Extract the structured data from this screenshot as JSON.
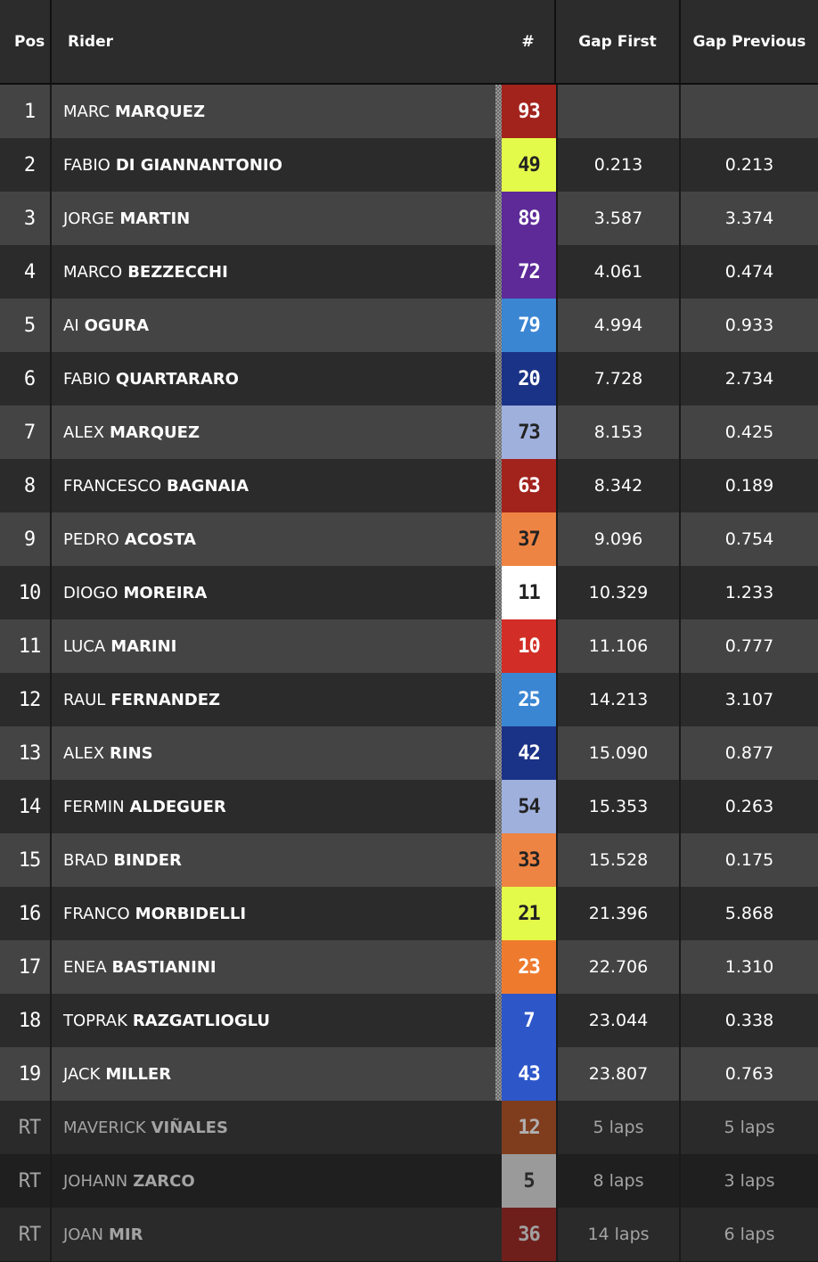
{
  "header": {
    "pos": "Pos",
    "rider": "Rider",
    "num": "#",
    "gap_first": "Gap First",
    "gap_previous": "Gap Previous"
  },
  "rows": [
    {
      "pos": "1",
      "first": "MARC",
      "last": "MARQUEZ",
      "num": "93",
      "bg": "#a2231c",
      "fg": "#ffffff",
      "gap_first": "",
      "gap_previous": ""
    },
    {
      "pos": "2",
      "first": "FABIO",
      "last": "DI GIANNANTONIO",
      "num": "49",
      "bg": "#e4fa4a",
      "fg": "#222222",
      "gap_first": "0.213",
      "gap_previous": "0.213"
    },
    {
      "pos": "3",
      "first": "JORGE",
      "last": "MARTIN",
      "num": "89",
      "bg": "#5d2a98",
      "fg": "#ffffff",
      "gap_first": "3.587",
      "gap_previous": "3.374"
    },
    {
      "pos": "4",
      "first": "MARCO",
      "last": "BEZZECCHI",
      "num": "72",
      "bg": "#5d2a98",
      "fg": "#ffffff",
      "gap_first": "4.061",
      "gap_previous": "0.474"
    },
    {
      "pos": "5",
      "first": "AI",
      "last": "OGURA",
      "num": "79",
      "bg": "#3b86d3",
      "fg": "#ffffff",
      "gap_first": "4.994",
      "gap_previous": "0.933"
    },
    {
      "pos": "6",
      "first": "FABIO",
      "last": "QUARTARARO",
      "num": "20",
      "bg": "#1b3386",
      "fg": "#ffffff",
      "gap_first": "7.728",
      "gap_previous": "2.734"
    },
    {
      "pos": "7",
      "first": "ALEX",
      "last": "MARQUEZ",
      "num": "73",
      "bg": "#9fb0dd",
      "fg": "#222222",
      "gap_first": "8.153",
      "gap_previous": "0.425"
    },
    {
      "pos": "8",
      "first": "FRANCESCO",
      "last": "BAGNAIA",
      "num": "63",
      "bg": "#a2231c",
      "fg": "#ffffff",
      "gap_first": "8.342",
      "gap_previous": "0.189"
    },
    {
      "pos": "9",
      "first": "PEDRO",
      "last": "ACOSTA",
      "num": "37",
      "bg": "#ee8443",
      "fg": "#222222",
      "gap_first": "9.096",
      "gap_previous": "0.754"
    },
    {
      "pos": "10",
      "first": "DIOGO",
      "last": "MOREIRA",
      "num": "11",
      "bg": "#ffffff",
      "fg": "#222222",
      "gap_first": "10.329",
      "gap_previous": "1.233"
    },
    {
      "pos": "11",
      "first": "LUCA",
      "last": "MARINI",
      "num": "10",
      "bg": "#d22d26",
      "fg": "#ffffff",
      "gap_first": "11.106",
      "gap_previous": "0.777"
    },
    {
      "pos": "12",
      "first": "RAUL",
      "last": "FERNANDEZ",
      "num": "25",
      "bg": "#3b86d3",
      "fg": "#ffffff",
      "gap_first": "14.213",
      "gap_previous": "3.107"
    },
    {
      "pos": "13",
      "first": "ALEX",
      "last": "RINS",
      "num": "42",
      "bg": "#1b3386",
      "fg": "#ffffff",
      "gap_first": "15.090",
      "gap_previous": "0.877"
    },
    {
      "pos": "14",
      "first": "FERMIN",
      "last": "ALDEGUER",
      "num": "54",
      "bg": "#9fb0dd",
      "fg": "#222222",
      "gap_first": "15.353",
      "gap_previous": "0.263"
    },
    {
      "pos": "15",
      "first": "BRAD",
      "last": "BINDER",
      "num": "33",
      "bg": "#ee8443",
      "fg": "#222222",
      "gap_first": "15.528",
      "gap_previous": "0.175"
    },
    {
      "pos": "16",
      "first": "FRANCO",
      "last": "MORBIDELLI",
      "num": "21",
      "bg": "#e4fa4a",
      "fg": "#222222",
      "gap_first": "21.396",
      "gap_previous": "5.868"
    },
    {
      "pos": "17",
      "first": "ENEA",
      "last": "BASTIANINI",
      "num": "23",
      "bg": "#ee7a2e",
      "fg": "#ffffff",
      "gap_first": "22.706",
      "gap_previous": "1.310"
    },
    {
      "pos": "18",
      "first": "TOPRAK",
      "last": "RAZGATLIOGLU",
      "num": "7",
      "bg": "#2d56c9",
      "fg": "#ffffff",
      "gap_first": "23.044",
      "gap_previous": "0.338"
    },
    {
      "pos": "19",
      "first": "JACK",
      "last": "MILLER",
      "num": "43",
      "bg": "#2d56c9",
      "fg": "#ffffff",
      "gap_first": "23.807",
      "gap_previous": "0.763"
    },
    {
      "pos": "RT",
      "first": "MAVERICK",
      "last": "VIÑALES",
      "num": "12",
      "bg": "#7f3d1e",
      "fg": "#b0b0b0",
      "gap_first": "5 laps",
      "gap_previous": "5 laps",
      "retired": true
    },
    {
      "pos": "RT",
      "first": "JOHANN",
      "last": "ZARCO",
      "num": "5",
      "bg": "#9a9a9a",
      "fg": "#2a2a2a",
      "gap_first": "8 laps",
      "gap_previous": "3 laps",
      "retired": true
    },
    {
      "pos": "RT",
      "first": "JOAN",
      "last": "MIR",
      "num": "36",
      "bg": "#6e1f1b",
      "fg": "#a0a0a0",
      "gap_first": "14 laps",
      "gap_previous": "6 laps",
      "retired": true
    }
  ]
}
